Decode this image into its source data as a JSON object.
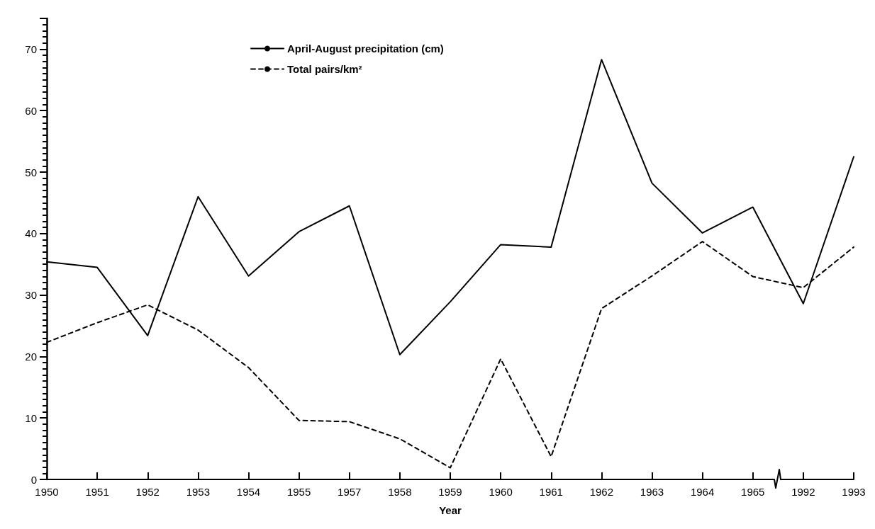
{
  "chart_data": {
    "type": "line",
    "xlabel": "Year",
    "categories": [
      "1950",
      "1951",
      "1952",
      "1953",
      "1954",
      "1955",
      "1957",
      "1958",
      "1959",
      "1960",
      "1961",
      "1962",
      "1963",
      "1964",
      "1965",
      "1992",
      "1993"
    ],
    "series": [
      {
        "name": "April-August precipitation (cm)",
        "color": "#000000",
        "line_style": "solid",
        "values": [
          35.4,
          34.5,
          23.4,
          46.0,
          33.1,
          40.3,
          44.5,
          20.3,
          28.9,
          38.2,
          37.8,
          68.3,
          48.2,
          40.1,
          44.3,
          28.6,
          52.5
        ]
      },
      {
        "name": "Total pairs/km²",
        "color": "#000000",
        "line_style": "dashed",
        "values": [
          22.3,
          25.5,
          28.4,
          24.3,
          18.2,
          9.6,
          9.4,
          6.6,
          1.9,
          19.6,
          3.7,
          27.8,
          33.1,
          38.7,
          33.0,
          31.2,
          37.8
        ]
      }
    ],
    "ylim": [
      0,
      75
    ],
    "yticks": [
      0,
      10,
      20,
      30,
      40,
      50,
      60,
      70
    ],
    "grid": false,
    "legend": "top left",
    "marker": "none"
  }
}
